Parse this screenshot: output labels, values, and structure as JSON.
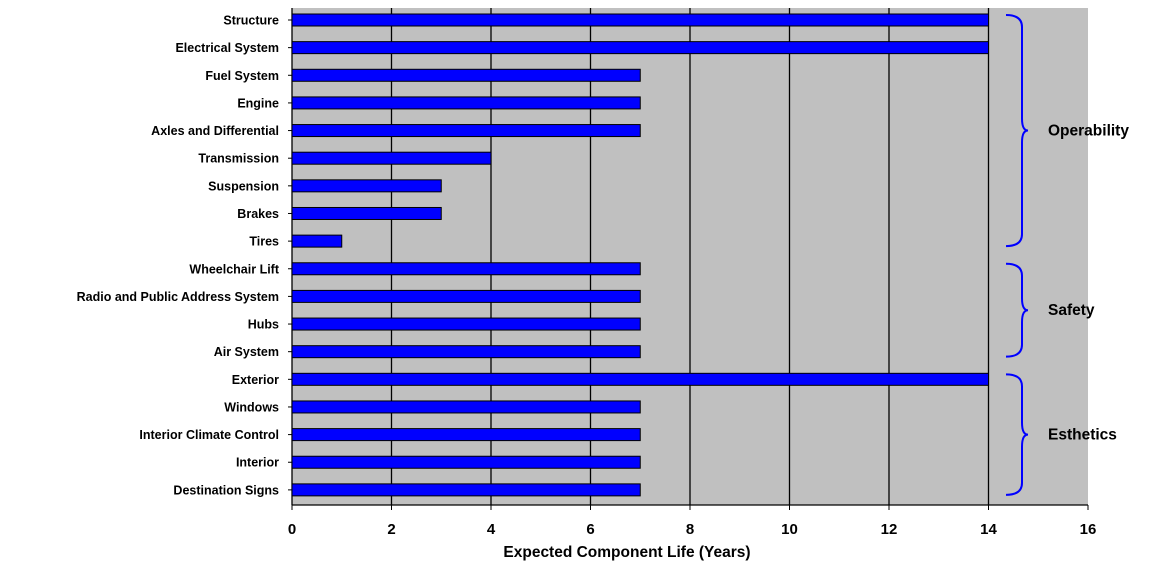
{
  "chart_data": {
    "type": "bar",
    "orientation": "horizontal",
    "categories": [
      "Structure",
      "Electrical System",
      "Fuel System",
      "Engine",
      "Axles and Differential",
      "Transmission",
      "Suspension",
      "Brakes",
      "Tires",
      "Wheelchair Lift",
      "Radio and Public Address System",
      "Hubs",
      "Air System",
      "Exterior",
      "Windows",
      "Interior Climate Control",
      "Interior",
      "Destination Signs"
    ],
    "values": [
      14,
      14,
      7,
      7,
      7,
      4,
      3,
      3,
      1,
      7,
      7,
      7,
      7,
      14,
      7,
      7,
      7,
      7
    ],
    "xlabel": "Expected Component Life (Years)",
    "ylabel": "",
    "xlim": [
      0,
      16
    ],
    "xticks": [
      "0",
      "2",
      "4",
      "6",
      "8",
      "10",
      "12",
      "14",
      "16"
    ],
    "grid": "vertical",
    "plot_background": "#c0c0c0",
    "bar_color": "#0000ff",
    "bracket_color": "#0000ff",
    "groups": [
      {
        "label": "Operability",
        "first": 0,
        "last": 8
      },
      {
        "label": "Safety",
        "first": 9,
        "last": 12
      },
      {
        "label": "Esthetics",
        "first": 13,
        "last": 17
      }
    ]
  }
}
